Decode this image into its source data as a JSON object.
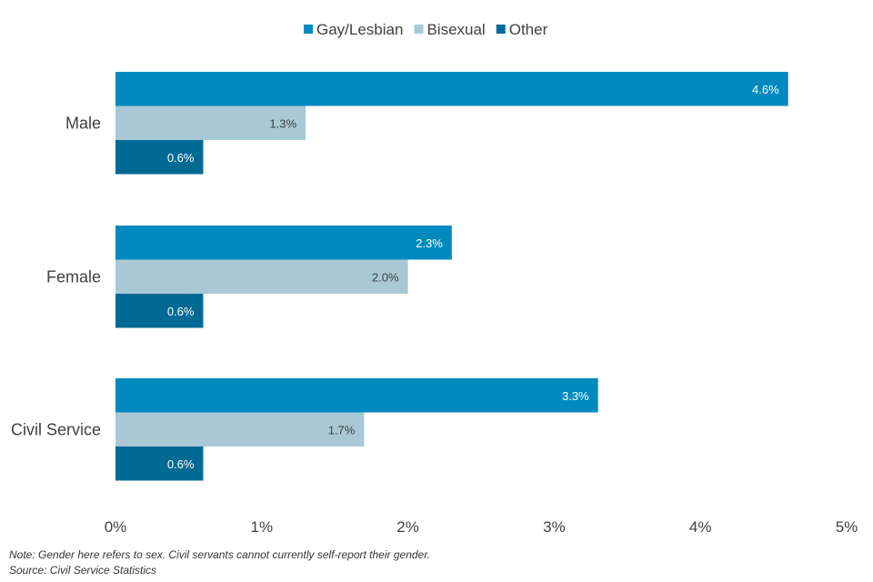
{
  "chart_data": {
    "type": "bar",
    "orientation": "horizontal",
    "title": "",
    "categories": [
      "Male",
      "Female",
      "Civil Service"
    ],
    "series": [
      {
        "name": "Gay/Lesbian",
        "color": "#0089BF",
        "values": [
          4.6,
          2.3,
          3.3
        ],
        "labels": [
          "4.6%",
          "2.3%",
          "3.3%"
        ]
      },
      {
        "name": "Bisexual",
        "color": "#A9C8D6",
        "values": [
          1.3,
          2.0,
          1.7
        ],
        "labels": [
          "1.3%",
          "2.0%",
          "1.7%"
        ]
      },
      {
        "name": "Other",
        "color": "#006A95",
        "values": [
          0.6,
          0.6,
          0.6
        ],
        "labels": [
          "0.6%",
          "0.6%",
          "0.6%"
        ]
      }
    ],
    "xlim": [
      0,
      5
    ],
    "xticks": [
      0,
      1,
      2,
      3,
      4,
      5
    ],
    "xtick_labels": [
      "0%",
      "1%",
      "2%",
      "3%",
      "4%",
      "5%"
    ],
    "xlabel": "",
    "ylabel": "",
    "grid": false,
    "legend_position": "top-center"
  },
  "notes": {
    "note": "Note: Gender here refers to sex. Civil servants cannot currently self-report their gender.",
    "source": "Source: Civil Service Statistics"
  }
}
